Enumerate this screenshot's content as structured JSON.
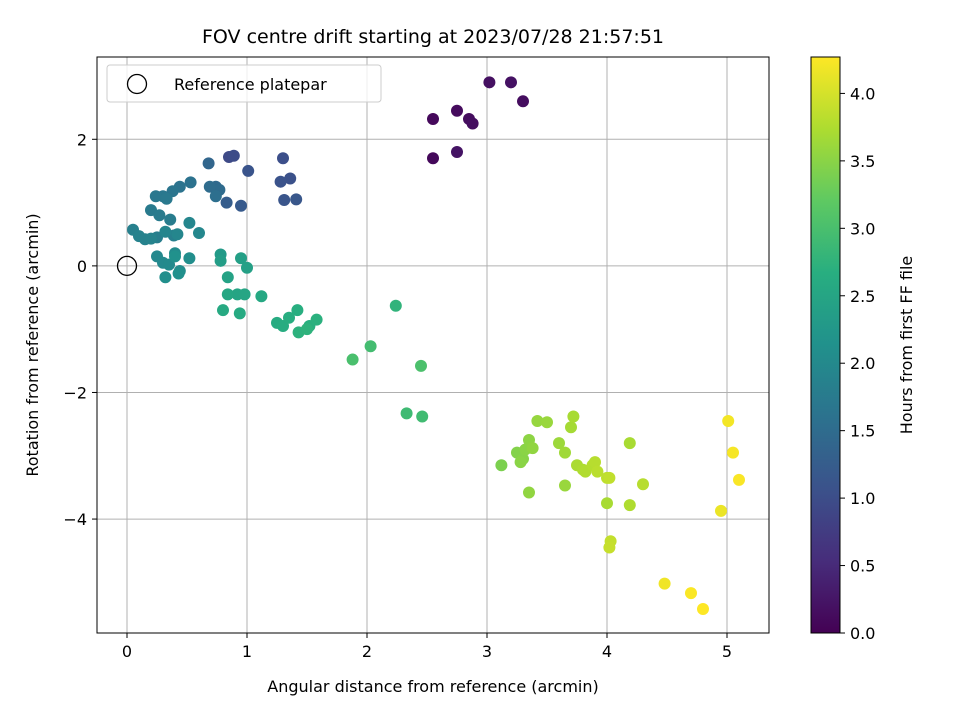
{
  "chart_data": {
    "type": "scatter",
    "title": "FOV centre drift starting at 2023/07/28 21:57:51",
    "xlabel": "Angular distance from reference (arcmin)",
    "ylabel": "Rotation from reference (arcmin)",
    "xlim": [
      -0.25,
      5.35
    ],
    "ylim": [
      -5.8,
      3.3
    ],
    "xticks": [
      0,
      1,
      2,
      3,
      4,
      5
    ],
    "xtick_labels": [
      "0",
      "1",
      "2",
      "3",
      "4",
      "5"
    ],
    "yticks": [
      -4,
      -2,
      0,
      2
    ],
    "ytick_labels": [
      "−4",
      "−2",
      "0",
      "2"
    ],
    "grid": true,
    "legend": {
      "placement": "top-left",
      "entries": [
        "Reference platepar"
      ]
    },
    "reference_point": {
      "x": 0,
      "y": 0,
      "label": "Reference platepar"
    },
    "colorbar": {
      "label": "Hours from first FF file",
      "colormap": "viridis",
      "range": [
        0,
        4.27
      ],
      "ticks": [
        0.0,
        0.5,
        1.0,
        1.5,
        2.0,
        2.5,
        3.0,
        3.5,
        4.0
      ],
      "tick_labels": [
        "0.0",
        "0.5",
        "1.0",
        "1.5",
        "2.0",
        "2.5",
        "3.0",
        "3.5",
        "4.0"
      ]
    },
    "series": [
      {
        "x": [
          3.02,
          3.2,
          3.3,
          2.75,
          2.55,
          2.85,
          2.88,
          2.55,
          2.75,
          0.85,
          0.89,
          1.36,
          1.01,
          1.28,
          1.31,
          1.3,
          1.41,
          0.95,
          0.83,
          0.68,
          0.74,
          0.77,
          0.69,
          0.74,
          0.53,
          0.44,
          0.38,
          0.3,
          0.24,
          0.33,
          0.2,
          0.27,
          0.36,
          0.25,
          0.39,
          0.05,
          0.1,
          0.15,
          0.2,
          0.32,
          0.42,
          0.52,
          0.6,
          0.25,
          0.3,
          0.35,
          0.4,
          0.44,
          0.52,
          0.32,
          0.43,
          0.4,
          0.78,
          0.78,
          0.95,
          1.0,
          0.84,
          0.92,
          0.98,
          0.84,
          1.12,
          0.8,
          0.94,
          1.25,
          1.3,
          1.35,
          1.42,
          1.52,
          1.58,
          1.43,
          1.5,
          2.24,
          2.03,
          1.88,
          2.45,
          2.33,
          2.46,
          3.12,
          3.25,
          3.3,
          3.32,
          3.35,
          3.38,
          3.42,
          3.5,
          3.28,
          3.35,
          3.6,
          3.65,
          3.7,
          3.72,
          3.75,
          3.8,
          3.82,
          3.88,
          3.9,
          3.92,
          3.65,
          4.0,
          4.02,
          4.0,
          4.03,
          4.02,
          4.19,
          4.19,
          4.3,
          5.01,
          5.05,
          5.1,
          4.95,
          4.48,
          4.7,
          4.8
        ],
        "y": [
          2.9,
          2.9,
          2.6,
          2.45,
          2.32,
          2.32,
          2.25,
          1.7,
          1.8,
          1.72,
          1.74,
          1.38,
          1.5,
          1.33,
          1.04,
          1.7,
          1.05,
          0.95,
          1.0,
          1.62,
          1.25,
          1.2,
          1.25,
          1.1,
          1.32,
          1.25,
          1.18,
          1.1,
          1.1,
          1.06,
          0.88,
          0.8,
          0.73,
          0.45,
          0.48,
          0.57,
          0.47,
          0.42,
          0.43,
          0.54,
          0.5,
          0.68,
          0.52,
          0.15,
          0.05,
          0.02,
          0.2,
          -0.08,
          0.12,
          -0.18,
          -0.12,
          0.15,
          0.18,
          0.08,
          0.12,
          -0.03,
          -0.18,
          -0.45,
          -0.45,
          -0.45,
          -0.48,
          -0.7,
          -0.75,
          -0.9,
          -0.95,
          -0.82,
          -0.7,
          -0.95,
          -0.85,
          -1.05,
          -1.0,
          -0.63,
          -1.27,
          -1.48,
          -1.58,
          -2.33,
          -2.38,
          -3.15,
          -2.95,
          -3.05,
          -2.9,
          -2.75,
          -2.88,
          -2.45,
          -2.47,
          -3.1,
          -3.58,
          -2.8,
          -2.95,
          -2.55,
          -2.38,
          -3.15,
          -3.22,
          -3.25,
          -3.15,
          -3.1,
          -3.25,
          -3.47,
          -3.35,
          -3.35,
          -3.75,
          -4.35,
          -4.45,
          -2.8,
          -3.78,
          -3.45,
          -2.45,
          -2.95,
          -3.38,
          -3.87,
          -5.02,
          -5.17,
          -5.42
        ],
        "c": [
          0.18,
          0.2,
          0.15,
          0.12,
          0.1,
          0.14,
          0.16,
          0.08,
          0.22,
          0.95,
          0.98,
          1.05,
          1.1,
          1.08,
          1.12,
          1.02,
          1.15,
          1.2,
          1.25,
          1.4,
          1.45,
          1.48,
          1.5,
          1.55,
          1.6,
          1.62,
          1.65,
          1.68,
          1.7,
          1.72,
          1.74,
          1.76,
          1.78,
          1.8,
          1.82,
          1.85,
          1.87,
          1.88,
          1.9,
          1.92,
          1.94,
          1.95,
          1.96,
          1.98,
          2.0,
          2.02,
          2.04,
          2.06,
          2.08,
          2.1,
          2.12,
          2.14,
          2.3,
          2.35,
          2.4,
          2.42,
          2.45,
          2.48,
          2.5,
          2.52,
          2.55,
          2.58,
          2.6,
          2.62,
          2.64,
          2.65,
          2.66,
          2.68,
          2.7,
          2.72,
          2.74,
          2.76,
          2.95,
          3.0,
          3.02,
          2.9,
          2.92,
          3.4,
          3.45,
          3.48,
          3.5,
          3.52,
          3.55,
          3.58,
          3.6,
          3.5,
          3.55,
          3.62,
          3.65,
          3.68,
          3.7,
          3.72,
          3.74,
          3.76,
          3.78,
          3.8,
          3.82,
          3.6,
          3.84,
          3.86,
          3.7,
          3.88,
          3.9,
          3.7,
          3.75,
          3.8,
          4.2,
          4.22,
          4.24,
          4.15,
          4.18,
          4.25,
          4.27
        ]
      }
    ]
  }
}
